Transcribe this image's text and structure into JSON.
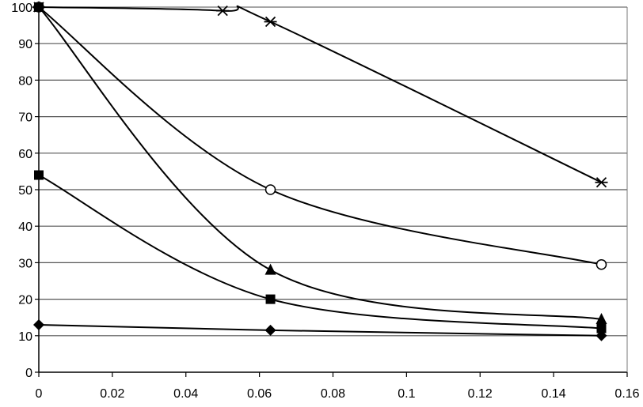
{
  "chart_data": {
    "type": "line",
    "title": "",
    "xlabel": "",
    "ylabel": "",
    "xlim": [
      0,
      0.16
    ],
    "ylim": [
      0,
      100
    ],
    "x_ticks": [
      "0",
      "0.02",
      "0.04",
      "0.06",
      "0.08",
      "0.1",
      "0.12",
      "0.14",
      "0.16"
    ],
    "y_ticks": [
      "0",
      "10",
      "20",
      "30",
      "40",
      "50",
      "60",
      "70",
      "80",
      "90",
      "100"
    ],
    "grid": "horizontal",
    "legend": "none",
    "series": [
      {
        "name": "asterisk",
        "marker": "asterisk",
        "x": [
          0,
          0.05,
          0.063,
          0.153
        ],
        "y": [
          100,
          99,
          96,
          52
        ]
      },
      {
        "name": "circle",
        "marker": "circle",
        "x": [
          0,
          0.063,
          0.153
        ],
        "y": [
          100,
          50,
          29.5
        ]
      },
      {
        "name": "triangle",
        "marker": "triangle",
        "x": [
          0,
          0.063,
          0.153
        ],
        "y": [
          100,
          28,
          14.5
        ]
      },
      {
        "name": "square",
        "marker": "square",
        "x": [
          0,
          0.063,
          0.153
        ],
        "y": [
          54,
          20,
          12
        ]
      },
      {
        "name": "diamond",
        "marker": "diamond",
        "x": [
          0,
          0.063,
          0.153
        ],
        "y": [
          13,
          11.5,
          10
        ]
      }
    ],
    "extra_markers": [
      {
        "marker": "square",
        "x": 0,
        "y": 100
      }
    ]
  }
}
